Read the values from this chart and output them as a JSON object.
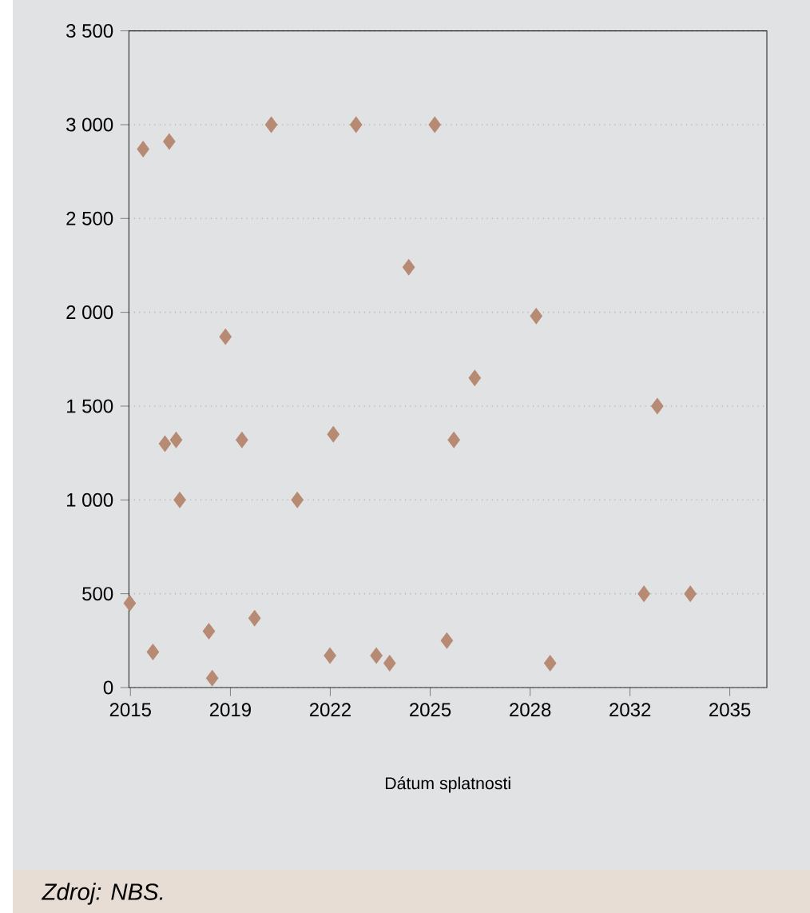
{
  "chart_data": {
    "type": "scatter",
    "xlabel": "Dátum splatnosti",
    "annotations": [
      "Zdroj: NBS."
    ],
    "x": [
      "2015-09-23",
      "2016-03-02",
      "2017-01-12",
      "2016-06-28",
      "2016-11-20",
      "2017-04-05",
      "2017-05-19",
      "2018-05-05",
      "2018-06-14",
      "2018-11-21",
      "2019-06-07",
      "2019-11-07",
      "2020-05-26",
      "2021-04-06",
      "2022-05-05",
      "2022-06-14",
      "2023-03-15",
      "2023-11-15",
      "2024-04-23",
      "2024-12-09",
      "2025-10-20",
      "2026-03-15",
      "2026-06-07",
      "2027-02-14",
      "2029-02-25",
      "2029-08-12",
      "2032-09-16",
      "2033-02-25",
      "2034-03-30"
    ],
    "values": [
      450,
      2870,
      2910,
      190,
      1300,
      1320,
      1000,
      300,
      50,
      1870,
      1320,
      370,
      3000,
      1000,
      170,
      1350,
      3000,
      170,
      130,
      2240,
      3000,
      250,
      1320,
      1650,
      1980,
      130,
      500,
      1500,
      500
    ],
    "color": "#b78a74",
    "marker": "diamond",
    "grid": "y",
    "xlim": [
      "2015-09-13",
      "2036-10-08"
    ],
    "xticks": [
      {
        "value": "2015-10-01",
        "label": "2015"
      },
      {
        "value": "2019-01-19",
        "label": "2019"
      },
      {
        "value": "2022-05-08",
        "label": "2022"
      },
      {
        "value": "2025-08-26",
        "label": "2025"
      },
      {
        "value": "2028-12-13",
        "label": "2028"
      },
      {
        "value": "2032-04-01",
        "label": "2032"
      },
      {
        "value": "2035-07-19",
        "label": "2035"
      }
    ],
    "ylim": [
      0,
      3500
    ],
    "yticks": [
      0,
      500,
      {
        "value": 1000,
        "label": "1 000"
      },
      {
        "value": 1500,
        "label": "1 500"
      },
      {
        "value": 2000,
        "label": "2 000"
      },
      {
        "value": 2500,
        "label": "2 500"
      },
      {
        "value": 3000,
        "label": "3 000"
      },
      {
        "value": 3500,
        "label": "3 500"
      }
    ]
  }
}
